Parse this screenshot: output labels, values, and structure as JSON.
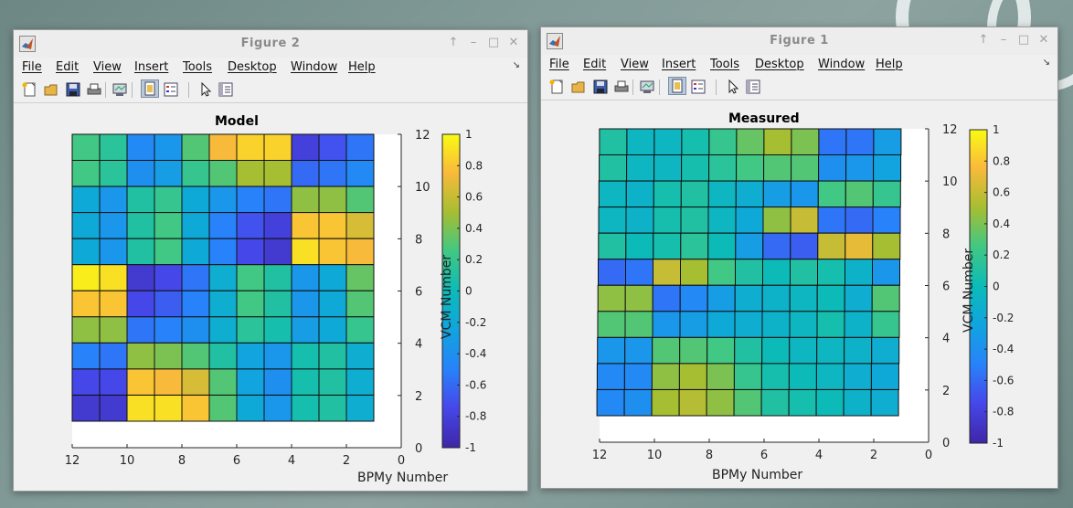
{
  "windows": [
    {
      "id": "fig2",
      "title": "Figure 2",
      "menu": [
        "File",
        "Edit",
        "View",
        "Insert",
        "Tools",
        "Desktop",
        "Window",
        "Help"
      ],
      "plot_title": "Model",
      "xlabel": "BPMy Number",
      "ylabel": "VCM Number"
    },
    {
      "id": "fig1",
      "title": "Figure 1",
      "menu": [
        "File",
        "Edit",
        "View",
        "Insert",
        "Tools",
        "Desktop",
        "Window",
        "Help"
      ],
      "plot_title": "Measured",
      "xlabel": "BPMy Number",
      "ylabel": "VCM Number"
    }
  ],
  "toolbar_icons": [
    "new-figure-icon",
    "open-file-icon",
    "save-icon",
    "print-icon",
    "link-plot-icon",
    "dock-figure-icon",
    "insert-legend-icon",
    "edit-plot-arrow-icon",
    "property-inspector-icon"
  ],
  "window_controls": [
    "pin-icon",
    "minimize-icon",
    "maximize-icon",
    "close-icon"
  ],
  "chart_data": [
    {
      "type": "heatmap",
      "title": "Model",
      "xlabel": "BPMy Number",
      "ylabel": "VCM Number",
      "xlim": [
        0,
        12
      ],
      "ylim": [
        0,
        12
      ],
      "x_reversed": true,
      "x_ticks": [
        12,
        10,
        8,
        6,
        4,
        2,
        0
      ],
      "y_ticks": [
        0,
        2,
        4,
        6,
        8,
        10,
        12
      ],
      "columns_bpm": [
        12,
        11,
        10,
        9,
        8,
        7,
        6,
        5,
        4,
        3,
        2
      ],
      "rows_vcm_top_to_bottom": [
        11,
        10,
        9,
        8,
        7,
        6,
        5,
        4,
        3,
        2,
        1
      ],
      "colorbar": {
        "min": -1,
        "max": 1,
        "ticks": [
          "1",
          "0.8",
          "0.6",
          "0.4",
          "0.2",
          "0",
          "-0.2",
          "-0.4",
          "-0.6",
          "-0.8",
          "-1"
        ]
      },
      "values": [
        [
          0.25,
          0.15,
          -0.45,
          -0.35,
          0.3,
          0.75,
          0.85,
          0.85,
          -0.8,
          -0.7,
          -0.55
        ],
        [
          0.25,
          0.15,
          -0.4,
          -0.3,
          0.2,
          0.3,
          0.5,
          0.5,
          -0.6,
          -0.55,
          -0.45
        ],
        [
          -0.2,
          -0.35,
          0.1,
          0.2,
          -0.2,
          -0.35,
          -0.5,
          -0.55,
          0.45,
          0.45,
          0.3
        ],
        [
          -0.2,
          -0.35,
          0.1,
          0.25,
          -0.2,
          -0.5,
          -0.7,
          -0.8,
          0.8,
          0.8,
          0.65
        ],
        [
          -0.2,
          -0.35,
          0.1,
          0.25,
          -0.2,
          -0.5,
          -0.75,
          -0.85,
          0.9,
          0.8,
          0.75
        ],
        [
          0.95,
          0.9,
          -0.85,
          -0.75,
          -0.55,
          -0.15,
          0.25,
          0.1,
          -0.35,
          -0.2,
          0.35
        ],
        [
          0.8,
          0.8,
          -0.75,
          -0.65,
          -0.5,
          -0.15,
          0.25,
          0.1,
          -0.35,
          -0.2,
          0.3
        ],
        [
          0.45,
          0.45,
          -0.55,
          -0.5,
          -0.4,
          -0.15,
          0.15,
          0.05,
          -0.3,
          -0.2,
          0.2
        ],
        [
          -0.5,
          -0.55,
          0.45,
          0.4,
          0.3,
          0.1,
          -0.25,
          -0.35,
          0.05,
          0.1,
          -0.15
        ],
        [
          -0.75,
          -0.75,
          0.8,
          0.75,
          0.65,
          0.3,
          -0.25,
          -0.4,
          0.05,
          0.1,
          -0.15
        ],
        [
          -0.85,
          -0.85,
          0.9,
          0.9,
          0.8,
          0.3,
          -0.2,
          -0.35,
          0.05,
          0.1,
          -0.15
        ]
      ]
    },
    {
      "type": "heatmap",
      "title": "Measured",
      "xlabel": "BPMy Number",
      "ylabel": "VCM Number",
      "xlim": [
        0,
        12
      ],
      "ylim": [
        0,
        12
      ],
      "x_reversed": true,
      "x_ticks": [
        12,
        10,
        8,
        6,
        4,
        2,
        0
      ],
      "y_ticks": [
        0,
        2,
        4,
        6,
        8,
        10,
        12
      ],
      "columns_bpm": [
        12,
        11,
        10,
        9,
        8,
        7,
        6,
        5,
        4,
        3,
        2
      ],
      "rows_vcm_top_to_bottom": [
        11,
        10,
        9,
        8,
        7,
        6,
        5,
        4,
        3,
        2,
        1
      ],
      "colorbar": {
        "min": -1,
        "max": 1,
        "ticks": [
          "1",
          "0.8",
          "0.6",
          "0.4",
          "0.2",
          "0",
          "-0.2",
          "-0.4",
          "-0.6",
          "-0.8",
          "-1"
        ]
      },
      "values": [
        [
          0.1,
          -0.05,
          -0.05,
          0.05,
          0.2,
          0.35,
          0.5,
          0.4,
          -0.55,
          -0.55,
          -0.3
        ],
        [
          0.1,
          -0.05,
          -0.05,
          0.05,
          0.15,
          0.25,
          0.3,
          0.3,
          -0.4,
          -0.35,
          -0.25
        ],
        [
          -0.05,
          -0.1,
          0.05,
          0.1,
          -0.05,
          -0.15,
          -0.3,
          -0.35,
          0.25,
          0.3,
          0.2
        ],
        [
          -0.05,
          -0.1,
          0.05,
          0.1,
          -0.05,
          -0.2,
          0.45,
          0.6,
          -0.55,
          -0.6,
          -0.5
        ],
        [
          0.1,
          0,
          0.05,
          0.15,
          0,
          -0.3,
          -0.6,
          -0.65,
          0.6,
          0.7,
          0.5
        ],
        [
          -0.6,
          -0.55,
          0.6,
          0.5,
          0.25,
          0.1,
          0,
          0.1,
          0.05,
          -0.1,
          -0.35
        ],
        [
          0.45,
          0.45,
          -0.55,
          -0.45,
          -0.3,
          -0.15,
          -0.1,
          -0.05,
          0,
          -0.15,
          0.3
        ],
        [
          0.3,
          0.3,
          -0.35,
          -0.3,
          -0.2,
          -0.15,
          -0.1,
          -0.05,
          0.05,
          -0.1,
          0.2
        ],
        [
          -0.35,
          -0.35,
          0.3,
          0.3,
          0.25,
          0.1,
          0,
          -0.05,
          -0.05,
          -0.1,
          -0.15
        ],
        [
          -0.45,
          -0.45,
          0.45,
          0.5,
          0.4,
          0.2,
          0.05,
          0,
          -0.05,
          -0.15,
          -0.2
        ],
        [
          -0.45,
          -0.4,
          0.5,
          0.55,
          0.45,
          0.3,
          0.1,
          0.05,
          0,
          -0.1,
          -0.15
        ]
      ]
    }
  ]
}
